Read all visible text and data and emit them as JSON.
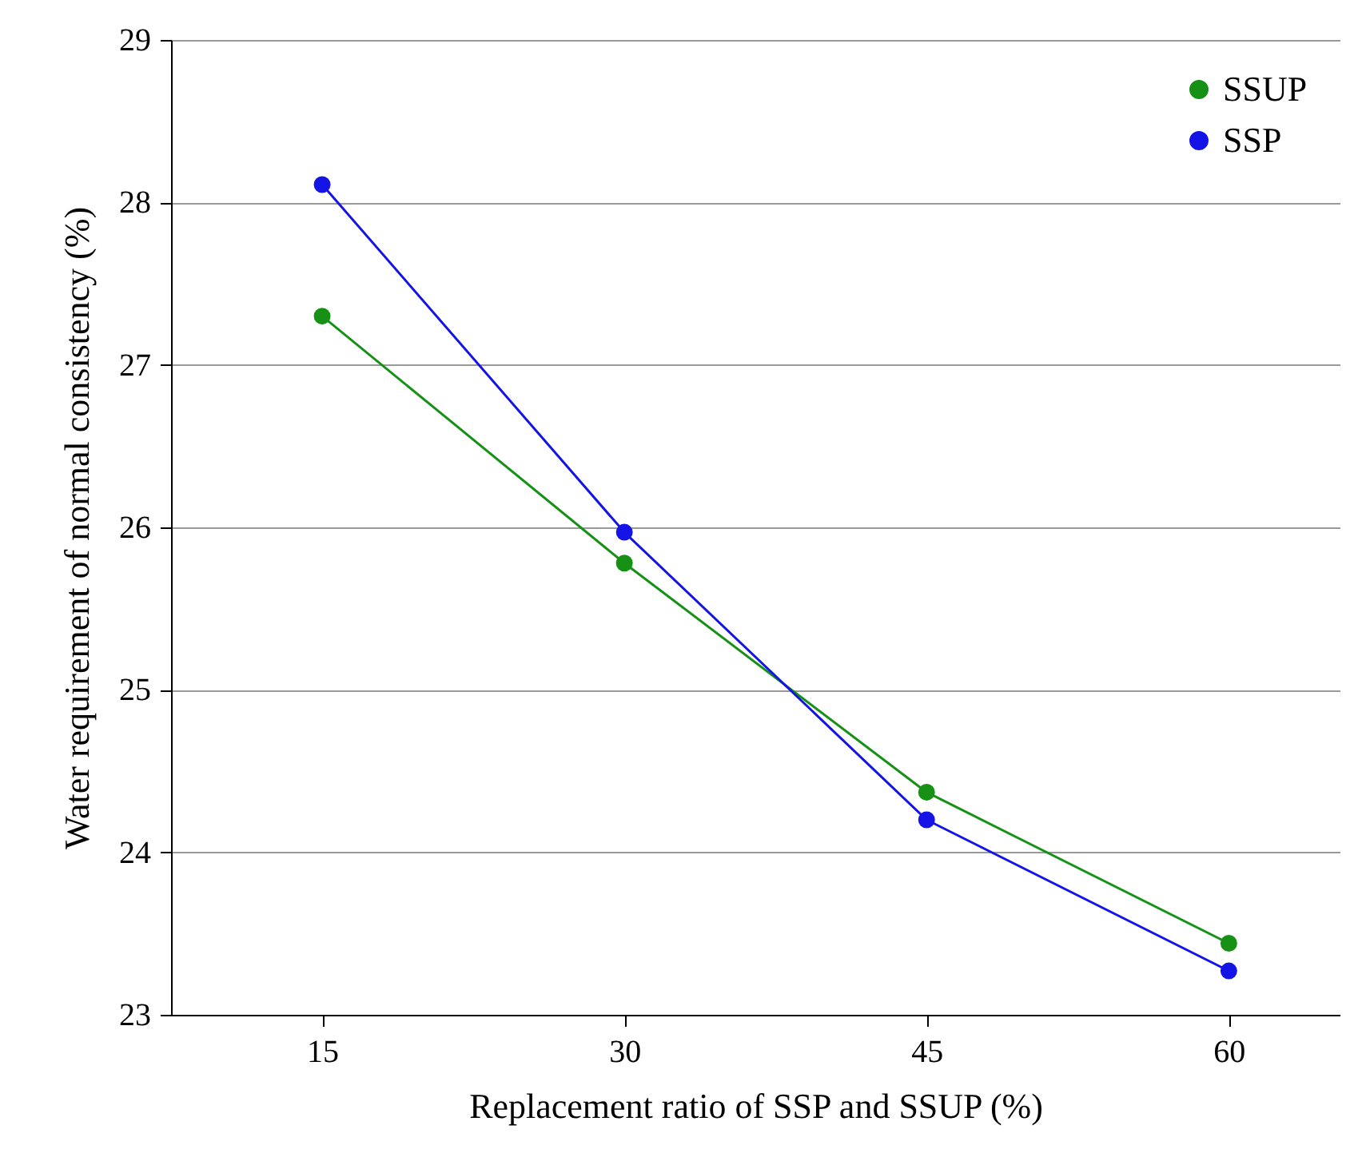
{
  "chart_data": {
    "type": "line",
    "xlabel": "Replacement ratio of SSP and SSUP (%)",
    "ylabel": "Water requirement of normal consistency (%)",
    "x": [
      15,
      30,
      45,
      60
    ],
    "series": [
      {
        "name": "SSUP",
        "color": "#169116",
        "values": [
          27.3,
          25.78,
          24.37,
          23.44
        ]
      },
      {
        "name": "SSP",
        "color": "#1414e6",
        "values": [
          28.11,
          25.97,
          24.2,
          23.27
        ]
      }
    ],
    "xlim": [
      7.5,
      65.5
    ],
    "xticks": [
      15,
      30,
      45,
      60
    ],
    "ylim": [
      23,
      29
    ],
    "yticks": [
      23,
      24,
      25,
      26,
      27,
      28,
      29
    ],
    "grid": "y",
    "legend": "top right",
    "marker": "circle",
    "line_style": "solid"
  }
}
